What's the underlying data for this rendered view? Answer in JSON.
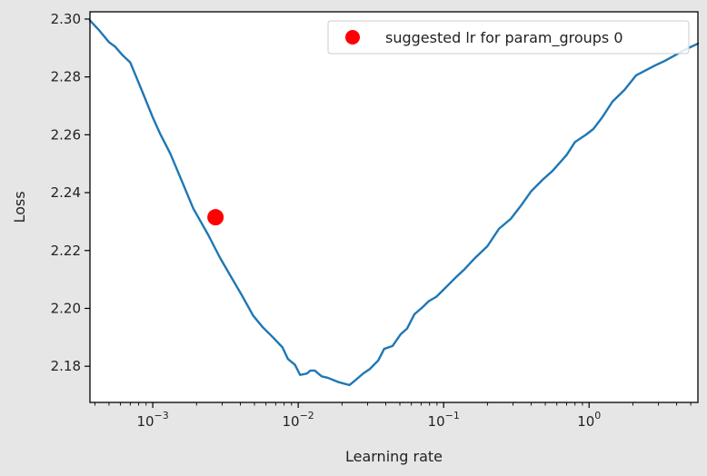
{
  "chart_data": {
    "type": "line",
    "xlabel": "Learning rate",
    "ylabel": "Loss",
    "xscale": "log",
    "xlim": [
      0.00037,
      5.6
    ],
    "ylim": [
      2.1675,
      2.3025
    ],
    "grid": false,
    "legend_position": "top-right",
    "x_tick_values": [
      0.001,
      0.01,
      0.1,
      1
    ],
    "x_tick_labels": [
      "10",
      "10",
      "10",
      "10"
    ],
    "x_tick_exponents": [
      "−3",
      "−2",
      "−1",
      "0"
    ],
    "y_ticks": [
      2.18,
      2.2,
      2.22,
      2.24,
      2.26,
      2.28,
      2.3
    ],
    "y_tick_labels": [
      "2.18",
      "2.20",
      "2.22",
      "2.24",
      "2.26",
      "2.28",
      "2.30"
    ],
    "series": [
      {
        "color": "#1f77b4",
        "x": [
          0.00037,
          0.00043,
          0.0005,
          0.00055,
          0.00062,
          0.0007,
          0.00077,
          0.00087,
          0.001,
          0.00112,
          0.00132,
          0.0016,
          0.0019,
          0.0024,
          0.0029,
          0.0034,
          0.0041,
          0.0049,
          0.0057,
          0.0067,
          0.0078,
          0.0085,
          0.0095,
          0.0103,
          0.0115,
          0.0121,
          0.013,
          0.0145,
          0.016,
          0.019,
          0.0225,
          0.0245,
          0.028,
          0.031,
          0.0355,
          0.039,
          0.0445,
          0.0505,
          0.056,
          0.063,
          0.072,
          0.079,
          0.089,
          0.1,
          0.12,
          0.139,
          0.165,
          0.2,
          0.24,
          0.29,
          0.34,
          0.4,
          0.48,
          0.56,
          0.7,
          0.8,
          0.95,
          1.07,
          1.23,
          1.45,
          1.75,
          2.1,
          2.5,
          2.85,
          3.3,
          3.9,
          4.6,
          5.6
        ],
        "y": [
          2.2995,
          2.296,
          2.292,
          2.2905,
          2.2875,
          2.285,
          2.28,
          2.2735,
          2.266,
          2.2605,
          2.2535,
          2.2435,
          2.2345,
          2.2255,
          2.2175,
          2.2115,
          2.2045,
          2.1975,
          2.1935,
          2.19,
          2.1865,
          2.1825,
          2.1805,
          2.177,
          2.1775,
          2.1785,
          2.1785,
          2.1765,
          2.176,
          2.1745,
          2.1735,
          2.175,
          2.1775,
          2.179,
          2.182,
          2.186,
          2.187,
          2.191,
          2.193,
          2.198,
          2.2005,
          2.2025,
          2.204,
          2.2065,
          2.2105,
          2.2135,
          2.2175,
          2.2215,
          2.2275,
          2.231,
          2.2355,
          2.2405,
          2.2445,
          2.2475,
          2.253,
          2.2575,
          2.26,
          2.262,
          2.266,
          2.2715,
          2.2755,
          2.2805,
          2.2825,
          2.284,
          2.2855,
          2.2875,
          2.2895,
          2.2915
        ]
      }
    ],
    "suggested_point": {
      "label": "suggested lr for param_groups 0",
      "x": 0.0027,
      "y": 2.2315,
      "color": "#ff0000"
    }
  }
}
